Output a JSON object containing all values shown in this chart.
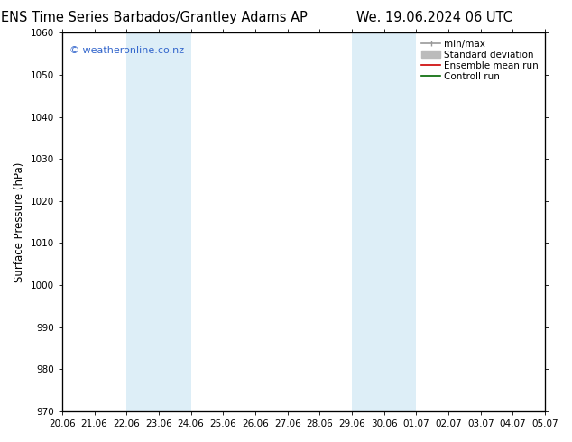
{
  "title_left": "ENS Time Series Barbados/Grantley Adams AP",
  "title_right": "We. 19.06.2024 06 UTC",
  "ylabel": "Surface Pressure (hPa)",
  "ylim": [
    970,
    1060
  ],
  "yticks": [
    970,
    980,
    990,
    1000,
    1010,
    1020,
    1030,
    1040,
    1050,
    1060
  ],
  "xtick_labels": [
    "20.06",
    "21.06",
    "22.06",
    "23.06",
    "24.06",
    "25.06",
    "26.06",
    "27.06",
    "28.06",
    "29.06",
    "30.06",
    "01.07",
    "02.07",
    "03.07",
    "04.07",
    "05.07"
  ],
  "background_color": "#ffffff",
  "plot_bg_color": "#ffffff",
  "shade_color": "#ddeef7",
  "shade_regions": [
    {
      "xstart": 2,
      "xend": 4,
      "color": "#ddeef7"
    },
    {
      "xstart": 9,
      "xend": 11,
      "color": "#ddeef7"
    }
  ],
  "watermark": "© weatheronline.co.nz",
  "watermark_color": "#3366cc",
  "legend_entries": [
    {
      "label": "min/max",
      "color": "#999999",
      "lw": 1.2
    },
    {
      "label": "Standard deviation",
      "color": "#bbbbbb",
      "lw": 5
    },
    {
      "label": "Ensemble mean run",
      "color": "#cc0000",
      "lw": 1.2
    },
    {
      "label": "Controll run",
      "color": "#006600",
      "lw": 1.2
    }
  ],
  "title_fontsize": 10.5,
  "tick_fontsize": 7.5,
  "ylabel_fontsize": 8.5,
  "legend_fontsize": 7.5,
  "watermark_fontsize": 8
}
